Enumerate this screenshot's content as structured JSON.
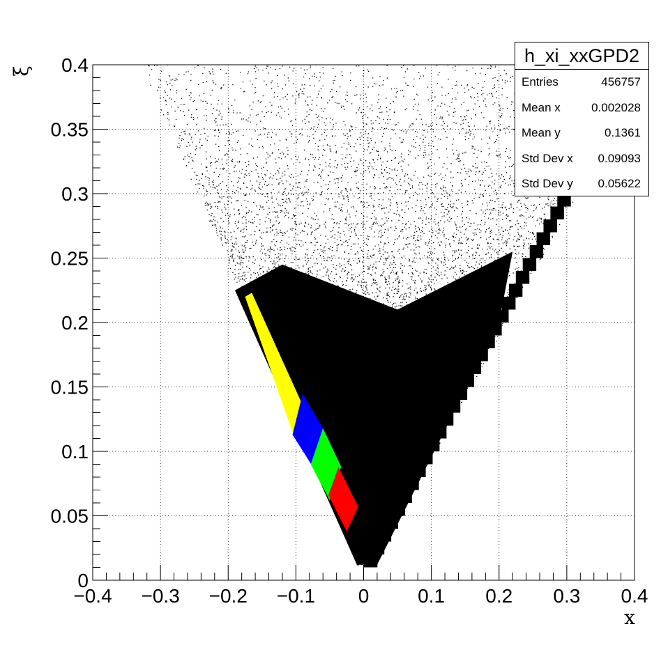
{
  "chart_data": {
    "type": "heatmap",
    "title": "",
    "xlabel": "x",
    "ylabel": "ξ",
    "xlim": [
      -0.4,
      0.4
    ],
    "ylim": [
      0,
      0.4
    ],
    "x_ticks": [
      "−0.4",
      "−0.3",
      "−0.2",
      "−0.1",
      "0",
      "0.1",
      "0.2",
      "0.3",
      "0.4"
    ],
    "y_ticks": [
      "0",
      "0.05",
      "0.1",
      "0.15",
      "0.2",
      "0.25",
      "0.3",
      "0.35",
      "0.4"
    ],
    "grid": true,
    "colors": {
      "main": "#000000",
      "yellow": "#ffff00",
      "blue": "#0000ff",
      "green": "#00ff00",
      "red": "#ff0000"
    },
    "highlighted_regions": [
      {
        "color": "yellow",
        "x_range": [
          -0.18,
          -0.085
        ],
        "xi_range": [
          0.12,
          0.22
        ]
      },
      {
        "color": "blue",
        "x_range": [
          -0.105,
          -0.06
        ],
        "xi_range": [
          0.09,
          0.14
        ]
      },
      {
        "color": "green",
        "x_range": [
          -0.075,
          -0.035
        ],
        "xi_range": [
          0.06,
          0.1
        ]
      },
      {
        "color": "red",
        "x_range": [
          -0.05,
          -0.01
        ],
        "xi_range": [
          0.04,
          0.08
        ]
      }
    ],
    "stats": {
      "name": "h_xi_xxGPD2",
      "rows": [
        {
          "label": "Entries",
          "value": "456757"
        },
        {
          "label": "Mean x",
          "value": "0.002028"
        },
        {
          "label": "Mean y",
          "value": "0.1361"
        },
        {
          "label": "Std Dev x",
          "value": "0.09093"
        },
        {
          "label": "Std Dev y",
          "value": "0.05622"
        }
      ]
    }
  }
}
